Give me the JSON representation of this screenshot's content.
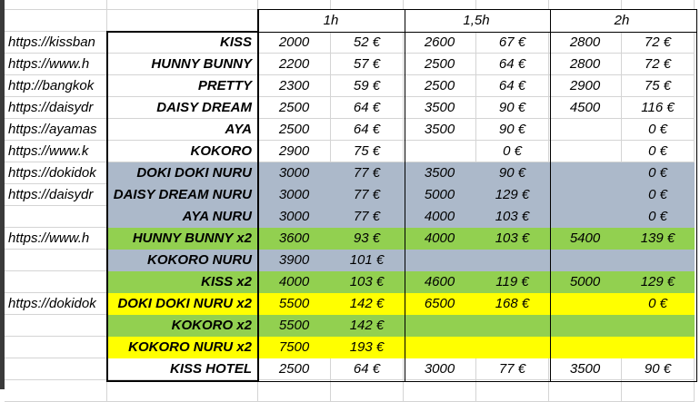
{
  "colors": {
    "gray": "#ACB9CA",
    "green": "#92D050",
    "yellow": "#FFFF00"
  },
  "headers": [
    "1h",
    "1,5h",
    "2h"
  ],
  "rows": [
    {
      "url": "https://kissban",
      "name": "KISS",
      "fill": "",
      "v": [
        "2000",
        "52 €",
        "2600",
        "67 €",
        "2800",
        "72 €"
      ]
    },
    {
      "url": "https://www.h",
      "name": "HUNNY BUNNY",
      "fill": "",
      "v": [
        "2200",
        "57 €",
        "2500",
        "64 €",
        "2800",
        "72 €"
      ]
    },
    {
      "url": "http://bangkok",
      "name": "PRETTY",
      "fill": "",
      "v": [
        "2300",
        "59 €",
        "2500",
        "64 €",
        "2900",
        "75 €"
      ]
    },
    {
      "url": "https://daisydr",
      "name": "DAISY DREAM",
      "fill": "",
      "v": [
        "2500",
        "64 €",
        "3500",
        "90 €",
        "4500",
        "116 €"
      ]
    },
    {
      "url": "https://ayamas",
      "name": "AYA",
      "fill": "",
      "v": [
        "2500",
        "64 €",
        "3500",
        "90 €",
        "",
        "0 €"
      ]
    },
    {
      "url": "https://www.k",
      "name": "KOKORO",
      "fill": "",
      "v": [
        "2900",
        "75 €",
        "",
        "0 €",
        "",
        "0 €"
      ]
    },
    {
      "url": "https://dokidok",
      "name": "DOKI DOKI NURU",
      "fill": "gray",
      "v": [
        "3000",
        "77 €",
        "3500",
        "90 €",
        "",
        "0 €"
      ]
    },
    {
      "url": "https://daisydr",
      "name": "DAISY DREAM NURU",
      "fill": "gray",
      "v": [
        "3000",
        "77 €",
        "5000",
        "129 €",
        "",
        "0 €"
      ]
    },
    {
      "url": "",
      "name": "AYA NURU",
      "fill": "gray",
      "v": [
        "3000",
        "77 €",
        "4000",
        "103 €",
        "",
        "0 €"
      ]
    },
    {
      "url": "https://www.h",
      "name": "HUNNY BUNNY x2",
      "fill": "green",
      "v": [
        "3600",
        "93 €",
        "4000",
        "103 €",
        "5400",
        "139 €"
      ]
    },
    {
      "url": "",
      "name": "KOKORO NURU",
      "fill": "gray",
      "v": [
        "3900",
        "101 €",
        "",
        "",
        "",
        ""
      ]
    },
    {
      "url": "",
      "name": "KISS x2",
      "fill": "green",
      "v": [
        "4000",
        "103 €",
        "4600",
        "119 €",
        "5000",
        "129 €"
      ]
    },
    {
      "url": "https://dokidok",
      "name": "DOKI DOKI NURU x2",
      "fill": "yellow",
      "v": [
        "5500",
        "142 €",
        "6500",
        "168 €",
        "",
        "0 €"
      ]
    },
    {
      "url": "",
      "name": "KOKORO x2",
      "fill": "green",
      "v": [
        "5500",
        "142 €",
        "",
        "",
        "",
        ""
      ]
    },
    {
      "url": "",
      "name": "KOKORO NURU x2",
      "fill": "yellow",
      "v": [
        "7500",
        "193 €",
        "",
        "",
        "",
        ""
      ]
    },
    {
      "url": "",
      "name": "KISS HOTEL",
      "fill": "",
      "v": [
        "2500",
        "64 €",
        "3000",
        "77 €",
        "3500",
        "90 €"
      ]
    }
  ]
}
